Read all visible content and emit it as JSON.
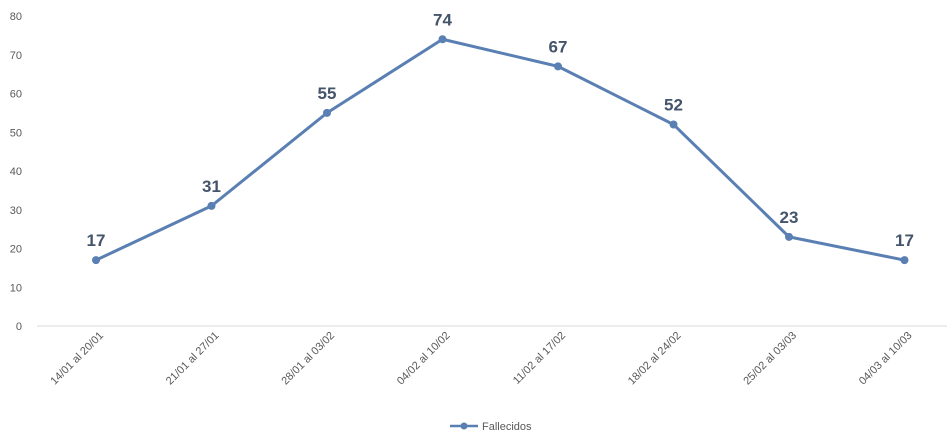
{
  "chart_data": {
    "type": "line",
    "categories": [
      "14/01 al 20/01",
      "21/01 al 27/01",
      "28/01 al 03/02",
      "04/02 al 10/02",
      "11/02 al 17/02",
      "18/02 al 24/02",
      "25/02 al 03/03",
      "04/03 al 10/03"
    ],
    "series": [
      {
        "name": "Fallecidos",
        "values": [
          17,
          31,
          55,
          74,
          67,
          52,
          23,
          17
        ],
        "color": "#5a7fb3"
      }
    ],
    "ylim": [
      0,
      80
    ],
    "yticks": [
      0,
      10,
      20,
      30,
      40,
      50,
      60,
      70,
      80
    ],
    "grid": false,
    "legend": "bottom-center",
    "data_labels": true
  }
}
